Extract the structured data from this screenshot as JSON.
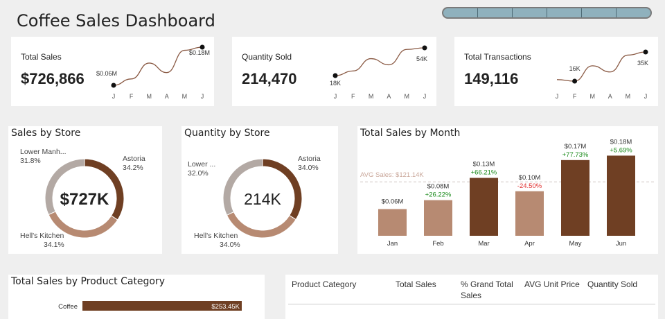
{
  "dashboard": {
    "title": "Coffee Sales Dashboard"
  },
  "colors": {
    "dark_brown": "#6f3f23",
    "mid_brown": "#b78a72",
    "light_brown": "#cbb3a6",
    "gray": "#b3a9a4",
    "avg_line": "#c9a79a",
    "positive": "#1a8a1a",
    "negative": "#e03030",
    "slicer": "#8fb1bd"
  },
  "kpis": [
    {
      "label": "Total Sales",
      "value": "$726,866",
      "months": [
        "J",
        "F",
        "M",
        "A",
        "M",
        "J"
      ],
      "trend": [
        0.06,
        0.08,
        0.13,
        0.1,
        0.17,
        0.18
      ],
      "start_label": "$0.06M",
      "end_label": "$0.18M",
      "marked_points": [
        0,
        5
      ]
    },
    {
      "label": "Quantity Sold",
      "value": "214,470",
      "months": [
        "J",
        "F",
        "M",
        "A",
        "M",
        "J"
      ],
      "trend": [
        18,
        24,
        40,
        32,
        52,
        54
      ],
      "start_label": "18K",
      "end_label": "54K",
      "marked_points": [
        0,
        5
      ]
    },
    {
      "label": "Total Transactions",
      "value": "149,116",
      "months": [
        "J",
        "F",
        "M",
        "A",
        "M",
        "J"
      ],
      "trend": [
        17,
        16,
        26,
        22,
        33,
        35
      ],
      "start_label": "16K",
      "end_label": "35K",
      "marked_points": [
        1,
        5
      ]
    }
  ],
  "chart_data": [
    {
      "type": "pie",
      "title": "Sales by Store",
      "center_label": "$727K",
      "slices": [
        {
          "name": "Astoria",
          "pct_label": "34.2%",
          "value": 34.2
        },
        {
          "name": "Hell's Kitchen",
          "pct_label": "34.1%",
          "value": 34.1
        },
        {
          "name": "Lower Manh...",
          "pct_label": "31.8%",
          "value": 31.8
        }
      ]
    },
    {
      "type": "pie",
      "title": "Quantity by Store",
      "center_label": "214K",
      "slices": [
        {
          "name": "Astoria",
          "pct_label": "34.0%",
          "value": 34.0
        },
        {
          "name": "Hell's Kitchen",
          "pct_label": "34.0%",
          "value": 34.0
        },
        {
          "name": "Lower ...",
          "pct_label": "32.0%",
          "value": 32.0
        }
      ]
    },
    {
      "type": "bar",
      "title": "Total Sales by Month",
      "categories": [
        "Jan",
        "Feb",
        "Mar",
        "Apr",
        "May",
        "Jun"
      ],
      "values": [
        0.06,
        0.08,
        0.13,
        0.1,
        0.17,
        0.18
      ],
      "value_labels": [
        "$0.06M",
        "$0.08M",
        "$0.13M",
        "$0.10M",
        "$0.17M",
        "$0.18M"
      ],
      "changes": [
        "",
        "+26.22%",
        "+66.21%",
        "-24.50%",
        "+77.73%",
        "+5.69%"
      ],
      "above_average": [
        false,
        false,
        true,
        false,
        true,
        true
      ],
      "avg_value": 0.12114,
      "avg_label": "AVG Sales: $121.14K",
      "ylim": [
        0,
        0.19
      ]
    },
    {
      "type": "bar",
      "title": "Total Sales by Product Category",
      "categories": [
        "Coffee"
      ],
      "values": [
        253.45
      ],
      "value_labels": [
        "$253.45K"
      ]
    }
  ],
  "table": {
    "headers": [
      "Product Category",
      "Total Sales",
      "% Grand Total Sales",
      "AVG Unit Price",
      "Quantity Sold"
    ]
  }
}
